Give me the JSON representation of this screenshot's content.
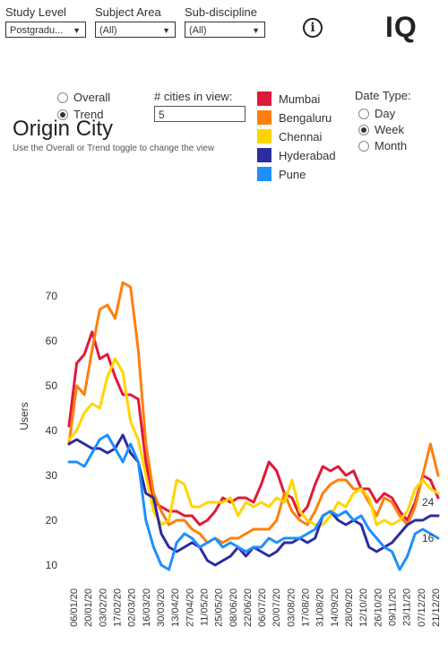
{
  "filters": {
    "study_level": {
      "label": "Study Level",
      "value": "Postgradu..."
    },
    "subject_area": {
      "label": "Subject Area",
      "value": "(All)"
    },
    "sub_discipline": {
      "label": "Sub-discipline",
      "value": "(All)"
    }
  },
  "header": {
    "info": "i",
    "logo": "IQ"
  },
  "view_toggle": {
    "overall": "Overall",
    "trend": "Trend",
    "selected": "trend"
  },
  "cities_in_view": {
    "label": "# cities in view:",
    "value": "5"
  },
  "date_type": {
    "label": "Date Type:",
    "day": "Day",
    "week": "Week",
    "month": "Month",
    "selected": "week"
  },
  "title": "Origin City",
  "subtitle": "Use the Overall or Trend toggle to change the view",
  "legend": [
    {
      "name": "Mumbai",
      "color": "#e0193a"
    },
    {
      "name": "Bengaluru",
      "color": "#ff7f0e"
    },
    {
      "name": "Chennai",
      "color": "#ffd500"
    },
    {
      "name": "Hyderabad",
      "color": "#2c2ca0"
    },
    {
      "name": "Pune",
      "color": "#1e8fff"
    }
  ],
  "chart_data": {
    "type": "line",
    "ylabel": "Users",
    "y_ticks": [
      10,
      20,
      30,
      40,
      50,
      60,
      70
    ],
    "ylim": [
      6,
      78
    ],
    "x_tick_labels": [
      "06/01/20",
      "20/01/20",
      "03/02/20",
      "17/02/20",
      "02/03/20",
      "16/03/20",
      "30/03/20",
      "13/04/20",
      "27/04/20",
      "11/05/20",
      "25/05/20",
      "08/06/20",
      "22/06/20",
      "06/07/20",
      "20/07/20",
      "03/08/20",
      "17/08/20",
      "31/08/20",
      "14/09/20",
      "28/09/20",
      "12/10/20",
      "26/10/20",
      "09/11/20",
      "23/11/20",
      "07/12/20",
      "21/12/20"
    ],
    "end_labels": [
      {
        "value": "24",
        "y": 24
      },
      {
        "value": "16",
        "y": 16
      }
    ],
    "series": [
      {
        "name": "Mumbai",
        "color": "#e0193a",
        "values": [
          41,
          55,
          57,
          62,
          56,
          57,
          52,
          48,
          48,
          47,
          33,
          24,
          23,
          22,
          22,
          21,
          21,
          19,
          20,
          22,
          25,
          24,
          25,
          25,
          24,
          28,
          33,
          31,
          26,
          25,
          21,
          23,
          28,
          32,
          31,
          32,
          30,
          31,
          27,
          27,
          24,
          26,
          25,
          22,
          20,
          24,
          30,
          29,
          25
        ]
      },
      {
        "name": "Bengaluru",
        "color": "#ff7f0e",
        "values": [
          37,
          50,
          48,
          58,
          67,
          68,
          65,
          73,
          72,
          58,
          37,
          26,
          22,
          19,
          20,
          20,
          18,
          17,
          15,
          16,
          15,
          16,
          16,
          17,
          18,
          18,
          18,
          20,
          26,
          22,
          20,
          19,
          22,
          26,
          28,
          29,
          29,
          27,
          27,
          24,
          21,
          25,
          24,
          21,
          19,
          23,
          30,
          37,
          30
        ]
      },
      {
        "name": "Chennai",
        "color": "#ffd500",
        "values": [
          38,
          40,
          44,
          46,
          45,
          52,
          56,
          53,
          42,
          38,
          30,
          22,
          19,
          20,
          29,
          28,
          23,
          23,
          24,
          24,
          24,
          25,
          21,
          24,
          23,
          24,
          23,
          25,
          24,
          29,
          22,
          20,
          19,
          19,
          21,
          24,
          23,
          26,
          27,
          25,
          19,
          20,
          19,
          20,
          22,
          27,
          29,
          27,
          26
        ]
      },
      {
        "name": "Hyderabad",
        "color": "#2c2ca0",
        "values": [
          37,
          38,
          37,
          36,
          36,
          35,
          36,
          39,
          35,
          33,
          26,
          25,
          17,
          14,
          13,
          14,
          15,
          14,
          11,
          10,
          11,
          12,
          14,
          12,
          14,
          13,
          12,
          13,
          15,
          15,
          16,
          15,
          16,
          21,
          22,
          20,
          19,
          20,
          19,
          14,
          13,
          14,
          15,
          17,
          19,
          20,
          20,
          21,
          21
        ]
      },
      {
        "name": "Pune",
        "color": "#1e8fff",
        "values": [
          33,
          33,
          32,
          35,
          38,
          39,
          36,
          33,
          37,
          33,
          20,
          14,
          10,
          9,
          15,
          17,
          16,
          14,
          15,
          16,
          14,
          15,
          14,
          13,
          14,
          14,
          16,
          15,
          16,
          16,
          16,
          17,
          18,
          21,
          22,
          21,
          22,
          20,
          21,
          18,
          16,
          14,
          13,
          9,
          12,
          17,
          18,
          17,
          16
        ]
      }
    ]
  }
}
